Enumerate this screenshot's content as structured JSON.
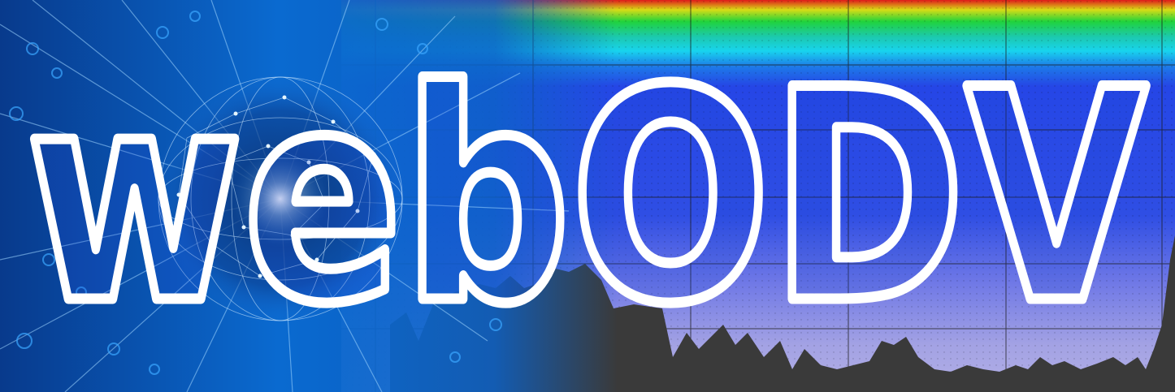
{
  "logo": {
    "text": "webODV"
  },
  "colors": {
    "network_dark": "#07306f",
    "network_mid": "#0a59c4",
    "network_light": "#1c8be6",
    "band_red": "#e02020",
    "band_yellow": "#d7e018",
    "band_green": "#1fd23a",
    "band_cyan": "#18d6ee",
    "band_blue": "#2546e6",
    "field_lavender": "#a8a6e3",
    "bathymetry": "#3c3c3c",
    "grid_lines": "#1c1c1c",
    "logo_outline": "#ffffff"
  }
}
